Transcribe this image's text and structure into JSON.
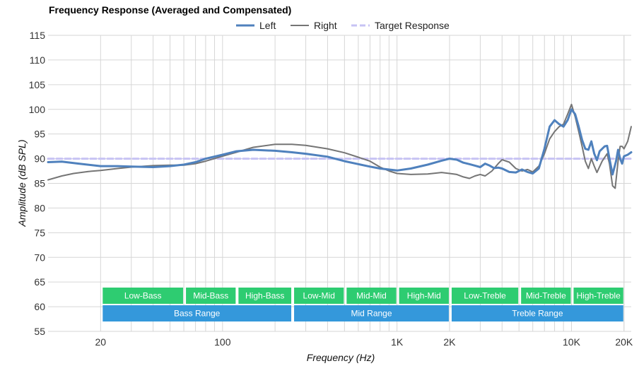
{
  "chart_data": {
    "type": "line",
    "title": "Frequency Response (Averaged and Compensated)",
    "xlabel": "Frequency (Hz)",
    "ylabel": "Amplitude (dB SPL)",
    "x_scale": "log",
    "xlim": [
      10,
      22000
    ],
    "ylim": [
      55,
      115
    ],
    "y_ticks": [
      55,
      60,
      65,
      70,
      75,
      80,
      85,
      90,
      95,
      100,
      105,
      110,
      115
    ],
    "x_tick_labels": [
      {
        "value": 20,
        "label": "20"
      },
      {
        "value": 100,
        "label": "100"
      },
      {
        "value": 1000,
        "label": "1K"
      },
      {
        "value": 2000,
        "label": "2K"
      },
      {
        "value": 10000,
        "label": "10K"
      },
      {
        "value": 20000,
        "label": "20K"
      }
    ],
    "grid": true,
    "legend_position": "top-center",
    "colors": {
      "left": "#4f81bd",
      "right": "#757575",
      "target": "#c7c3f4",
      "band_sub": "#2ecc71",
      "band_range": "#3498db",
      "grid": "#d6d6d6"
    },
    "series": [
      {
        "name": "Left",
        "points": [
          [
            10,
            89.3
          ],
          [
            12,
            89.4
          ],
          [
            15,
            89.0
          ],
          [
            20,
            88.5
          ],
          [
            25,
            88.5
          ],
          [
            30,
            88.4
          ],
          [
            40,
            88.3
          ],
          [
            50,
            88.5
          ],
          [
            60,
            88.8
          ],
          [
            70,
            89.3
          ],
          [
            80,
            90.0
          ],
          [
            100,
            90.8
          ],
          [
            120,
            91.5
          ],
          [
            150,
            91.8
          ],
          [
            200,
            91.6
          ],
          [
            250,
            91.3
          ],
          [
            300,
            91.0
          ],
          [
            400,
            90.4
          ],
          [
            500,
            89.5
          ],
          [
            600,
            88.9
          ],
          [
            700,
            88.4
          ],
          [
            800,
            88.0
          ],
          [
            1000,
            87.6
          ],
          [
            1200,
            88.0
          ],
          [
            1500,
            88.8
          ],
          [
            1800,
            89.6
          ],
          [
            2000,
            90.0
          ],
          [
            2200,
            89.8
          ],
          [
            2400,
            89.2
          ],
          [
            2600,
            88.9
          ],
          [
            2800,
            88.6
          ],
          [
            3000,
            88.3
          ],
          [
            3200,
            89.0
          ],
          [
            3400,
            88.6
          ],
          [
            3600,
            88.1
          ],
          [
            3800,
            88.2
          ],
          [
            4000,
            88.0
          ],
          [
            4400,
            87.3
          ],
          [
            4800,
            87.2
          ],
          [
            5200,
            87.8
          ],
          [
            5600,
            87.3
          ],
          [
            6000,
            87.0
          ],
          [
            6500,
            88.0
          ],
          [
            7000,
            92.0
          ],
          [
            7500,
            96.5
          ],
          [
            8000,
            97.8
          ],
          [
            8500,
            97.0
          ],
          [
            9000,
            96.5
          ],
          [
            9500,
            97.8
          ],
          [
            10000,
            100.0
          ],
          [
            10500,
            99.0
          ],
          [
            11000,
            96.5
          ],
          [
            11500,
            93.8
          ],
          [
            12000,
            92.0
          ],
          [
            12500,
            91.8
          ],
          [
            13000,
            93.5
          ],
          [
            13500,
            91.0
          ],
          [
            14000,
            89.7
          ],
          [
            14500,
            91.5
          ],
          [
            15500,
            92.5
          ],
          [
            16000,
            92.6
          ],
          [
            16500,
            90.0
          ],
          [
            17200,
            86.8
          ],
          [
            18000,
            89.5
          ],
          [
            18500,
            91.8
          ],
          [
            19000,
            90.0
          ],
          [
            19500,
            89.0
          ],
          [
            20000,
            90.5
          ],
          [
            21000,
            90.8
          ],
          [
            22000,
            91.3
          ]
        ]
      },
      {
        "name": "Right",
        "points": [
          [
            10,
            85.7
          ],
          [
            12,
            86.5
          ],
          [
            14,
            87.0
          ],
          [
            17,
            87.4
          ],
          [
            20,
            87.6
          ],
          [
            25,
            88.0
          ],
          [
            30,
            88.3
          ],
          [
            40,
            88.6
          ],
          [
            50,
            88.7
          ],
          [
            60,
            88.7
          ],
          [
            70,
            89.0
          ],
          [
            80,
            89.5
          ],
          [
            100,
            90.5
          ],
          [
            120,
            91.3
          ],
          [
            150,
            92.3
          ],
          [
            200,
            92.9
          ],
          [
            250,
            92.9
          ],
          [
            300,
            92.7
          ],
          [
            400,
            92.0
          ],
          [
            500,
            91.2
          ],
          [
            600,
            90.3
          ],
          [
            700,
            89.5
          ],
          [
            800,
            88.3
          ],
          [
            900,
            87.5
          ],
          [
            1000,
            87.0
          ],
          [
            1200,
            86.8
          ],
          [
            1500,
            86.9
          ],
          [
            1800,
            87.2
          ],
          [
            2000,
            87.0
          ],
          [
            2200,
            86.8
          ],
          [
            2400,
            86.3
          ],
          [
            2600,
            86.0
          ],
          [
            2800,
            86.5
          ],
          [
            3000,
            86.8
          ],
          [
            3200,
            86.5
          ],
          [
            3500,
            87.5
          ],
          [
            3800,
            89.0
          ],
          [
            4000,
            89.8
          ],
          [
            4400,
            89.3
          ],
          [
            4800,
            88.0
          ],
          [
            5200,
            87.5
          ],
          [
            5600,
            87.8
          ],
          [
            6000,
            87.3
          ],
          [
            6500,
            88.5
          ],
          [
            7000,
            91.0
          ],
          [
            7500,
            94.0
          ],
          [
            8000,
            95.5
          ],
          [
            8500,
            96.5
          ],
          [
            9000,
            97.0
          ],
          [
            9500,
            99.0
          ],
          [
            10000,
            101.0
          ],
          [
            10500,
            98.5
          ],
          [
            11000,
            95.5
          ],
          [
            11500,
            92.5
          ],
          [
            12000,
            89.5
          ],
          [
            12500,
            88.0
          ],
          [
            13000,
            90.0
          ],
          [
            13500,
            88.5
          ],
          [
            14000,
            87.2
          ],
          [
            15000,
            89.5
          ],
          [
            16000,
            91.0
          ],
          [
            16500,
            89.0
          ],
          [
            17200,
            84.5
          ],
          [
            17800,
            84.0
          ],
          [
            18500,
            89.5
          ],
          [
            19000,
            92.5
          ],
          [
            19500,
            92.5
          ],
          [
            20000,
            92.0
          ],
          [
            21000,
            93.5
          ],
          [
            22000,
            96.5
          ]
        ]
      },
      {
        "name": "Target Response",
        "points": [
          [
            10,
            90.0
          ],
          [
            22000,
            90.0
          ]
        ]
      }
    ],
    "bands_upper": [
      {
        "label": "Low-Bass",
        "from": 20,
        "to": 60
      },
      {
        "label": "Mid-Bass",
        "from": 60,
        "to": 120
      },
      {
        "label": "High-Bass",
        "from": 120,
        "to": 250
      },
      {
        "label": "Low-Mid",
        "from": 250,
        "to": 500
      },
      {
        "label": "Mid-Mid",
        "from": 500,
        "to": 1000
      },
      {
        "label": "High-Mid",
        "from": 1000,
        "to": 2000
      },
      {
        "label": "Low-Treble",
        "from": 2000,
        "to": 5000
      },
      {
        "label": "Mid-Treble",
        "from": 5000,
        "to": 10000
      },
      {
        "label": "High-Treble",
        "from": 10000,
        "to": 20000
      }
    ],
    "bands_lower": [
      {
        "label": "Bass Range",
        "from": 20,
        "to": 250
      },
      {
        "label": "Mid Range",
        "from": 250,
        "to": 2000
      },
      {
        "label": "Treble Range",
        "from": 2000,
        "to": 20000
      }
    ]
  }
}
